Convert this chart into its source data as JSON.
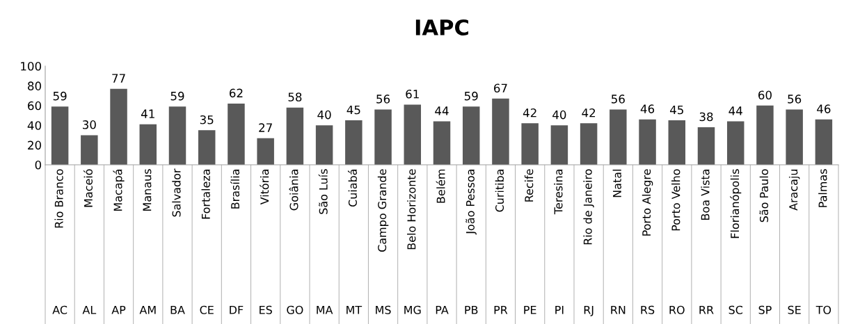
{
  "chart_data": {
    "type": "bar",
    "title": "IAPC",
    "categories": [
      "Rio Branco",
      "Maceió",
      "Macapá",
      "Manaus",
      "Salvador",
      "Fortaleza",
      "Brasília",
      "Vitória",
      "Goiânia",
      "São Luís",
      "Cuiabá",
      "Campo Grande",
      "Belo Horizonte",
      "Belém",
      "João Pessoa",
      "Curitiba",
      "Recife",
      "Teresina",
      "Rio de Janeiro",
      "Natal",
      "Porto Alegre",
      "Porto Velho",
      "Boa Vista",
      "Florianópolis",
      "São Paulo",
      "Aracaju",
      "Palmas"
    ],
    "values": [
      59,
      30,
      77,
      41,
      59,
      35,
      62,
      27,
      58,
      40,
      45,
      56,
      61,
      44,
      59,
      67,
      42,
      40,
      42,
      56,
      46,
      45,
      38,
      44,
      60,
      56,
      46
    ],
    "color": "#595959",
    "data_labels": true,
    "ylim": [
      0,
      100
    ],
    "yticks": [
      0,
      20,
      40,
      60,
      80,
      100
    ],
    "grid": false,
    "legend": false,
    "annotations": [
      "AC",
      "AL",
      "AP",
      "AM",
      "BA",
      "CE",
      "DF",
      "ES",
      "GO",
      "MA",
      "MT",
      "MS",
      "MG",
      "PA",
      "PB",
      "PR",
      "PE",
      "PI",
      "RJ",
      "RN",
      "RS",
      "RO",
      "RR",
      "SC",
      "SP",
      "SE",
      "TO"
    ]
  }
}
